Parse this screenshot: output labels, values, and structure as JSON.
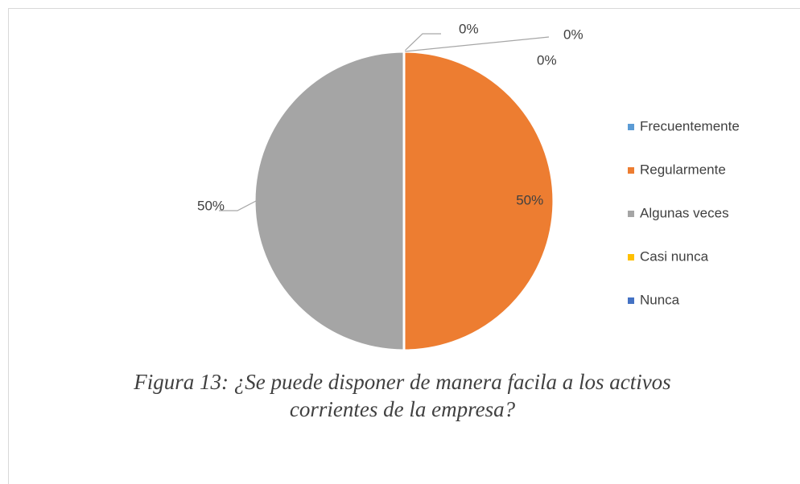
{
  "chart_data": {
    "type": "pie",
    "categories": [
      "Frecuentemente",
      "Regularmente",
      "Algunas veces",
      "Casi nunca",
      "Nunca"
    ],
    "values": [
      0,
      50,
      50,
      0,
      0
    ],
    "value_labels": [
      "0%",
      "50%",
      "50%",
      "0%",
      "0%"
    ],
    "colors": [
      "#5b9bd5",
      "#ed7d31",
      "#a5a5a5",
      "#ffc000",
      "#4472c4"
    ],
    "legend": "right",
    "caption": "Figura 13: ¿Se puede disponer de manera facila a los activos corrientes de la empresa?"
  }
}
